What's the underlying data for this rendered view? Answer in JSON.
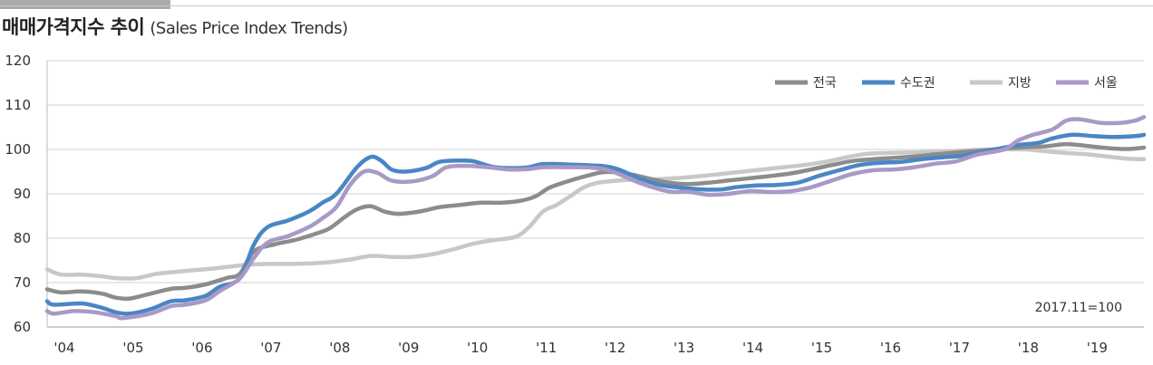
{
  "header": {
    "title_ko": "매매가격지수 추이",
    "title_en": "(Sales Price Index Trends)"
  },
  "chart_data": {
    "type": "line",
    "title": "매매가격지수 추이 (Sales Price Index Trends)",
    "note": "2017.11=100",
    "ylim": [
      60,
      120
    ],
    "yticks": [
      "60",
      "70",
      "80",
      "90",
      "100",
      "110",
      "120"
    ],
    "xlim": [
      2004.0,
      2019.93
    ],
    "xticks": [
      "'04",
      "'05",
      "'06",
      "'07",
      "'08",
      "'09",
      "'10",
      "'11",
      "'12",
      "'13",
      "'14",
      "'15",
      "'16",
      "'17",
      "'18",
      "'19"
    ],
    "grid": true,
    "legend_position": "top-right",
    "series": [
      {
        "name": "전국",
        "color": "#8c8c8c",
        "points": [
          [
            2004.0,
            68.5
          ],
          [
            2004.2,
            67.8
          ],
          [
            2004.5,
            68.0
          ],
          [
            2004.8,
            67.5
          ],
          [
            2005.0,
            66.6
          ],
          [
            2005.2,
            66.4
          ],
          [
            2005.5,
            67.5
          ],
          [
            2005.8,
            68.6
          ],
          [
            2006.0,
            68.8
          ],
          [
            2006.3,
            69.6
          ],
          [
            2006.6,
            71.0
          ],
          [
            2006.8,
            72.0
          ],
          [
            2007.0,
            77.0
          ],
          [
            2007.3,
            78.6
          ],
          [
            2007.6,
            79.6
          ],
          [
            2007.9,
            81.0
          ],
          [
            2008.1,
            82.2
          ],
          [
            2008.3,
            84.5
          ],
          [
            2008.5,
            86.5
          ],
          [
            2008.7,
            87.2
          ],
          [
            2008.9,
            86.0
          ],
          [
            2009.1,
            85.5
          ],
          [
            2009.4,
            86.0
          ],
          [
            2009.7,
            87.0
          ],
          [
            2010.0,
            87.5
          ],
          [
            2010.3,
            88.0
          ],
          [
            2010.6,
            88.0
          ],
          [
            2010.9,
            88.5
          ],
          [
            2011.1,
            89.5
          ],
          [
            2011.3,
            91.4
          ],
          [
            2011.6,
            93.0
          ],
          [
            2011.9,
            94.3
          ],
          [
            2012.1,
            94.9
          ],
          [
            2012.4,
            94.6
          ],
          [
            2012.7,
            93.6
          ],
          [
            2013.0,
            92.6
          ],
          [
            2013.3,
            92.2
          ],
          [
            2013.6,
            92.5
          ],
          [
            2013.9,
            93.0
          ],
          [
            2014.2,
            93.5
          ],
          [
            2014.5,
            94.0
          ],
          [
            2014.8,
            94.6
          ],
          [
            2015.1,
            95.5
          ],
          [
            2015.4,
            96.5
          ],
          [
            2015.7,
            97.4
          ],
          [
            2016.0,
            97.8
          ],
          [
            2016.3,
            98.1
          ],
          [
            2016.6,
            98.4
          ],
          [
            2016.9,
            98.9
          ],
          [
            2017.2,
            99.3
          ],
          [
            2017.6,
            99.8
          ],
          [
            2017.9,
            100.2
          ],
          [
            2018.2,
            100.5
          ],
          [
            2018.5,
            100.7
          ],
          [
            2018.8,
            101.2
          ],
          [
            2019.1,
            100.8
          ],
          [
            2019.4,
            100.3
          ],
          [
            2019.7,
            100.1
          ],
          [
            2019.93,
            100.4
          ]
        ]
      },
      {
        "name": "수도권",
        "color": "#4a86c5",
        "points": [
          [
            2004.0,
            65.8
          ],
          [
            2004.1,
            65.0
          ],
          [
            2004.5,
            65.3
          ],
          [
            2004.8,
            64.3
          ],
          [
            2005.0,
            63.3
          ],
          [
            2005.2,
            63.0
          ],
          [
            2005.5,
            64.0
          ],
          [
            2005.8,
            65.8
          ],
          [
            2006.0,
            66.0
          ],
          [
            2006.3,
            67.0
          ],
          [
            2006.5,
            69.0
          ],
          [
            2006.8,
            71.0
          ],
          [
            2007.0,
            78.5
          ],
          [
            2007.2,
            82.5
          ],
          [
            2007.5,
            84.0
          ],
          [
            2007.8,
            86.0
          ],
          [
            2008.0,
            88.0
          ],
          [
            2008.2,
            90.0
          ],
          [
            2008.5,
            96.0
          ],
          [
            2008.7,
            98.3
          ],
          [
            2008.85,
            97.5
          ],
          [
            2009.0,
            95.5
          ],
          [
            2009.2,
            95.0
          ],
          [
            2009.5,
            95.8
          ],
          [
            2009.7,
            97.2
          ],
          [
            2010.0,
            97.5
          ],
          [
            2010.2,
            97.3
          ],
          [
            2010.5,
            96.0
          ],
          [
            2010.8,
            95.8
          ],
          [
            2011.0,
            96.0
          ],
          [
            2011.2,
            96.7
          ],
          [
            2011.6,
            96.6
          ],
          [
            2011.9,
            96.4
          ],
          [
            2012.1,
            96.2
          ],
          [
            2012.3,
            95.5
          ],
          [
            2012.6,
            93.5
          ],
          [
            2012.9,
            92.0
          ],
          [
            2013.2,
            91.4
          ],
          [
            2013.5,
            91.0
          ],
          [
            2013.8,
            91.0
          ],
          [
            2014.0,
            91.5
          ],
          [
            2014.3,
            91.9
          ],
          [
            2014.6,
            92.0
          ],
          [
            2014.9,
            92.5
          ],
          [
            2015.2,
            94.0
          ],
          [
            2015.5,
            95.3
          ],
          [
            2015.8,
            96.5
          ],
          [
            2016.1,
            97.0
          ],
          [
            2016.4,
            97.2
          ],
          [
            2016.7,
            97.8
          ],
          [
            2017.0,
            98.2
          ],
          [
            2017.3,
            98.6
          ],
          [
            2017.6,
            99.5
          ],
          [
            2017.9,
            100.4
          ],
          [
            2018.1,
            101.0
          ],
          [
            2018.4,
            101.5
          ],
          [
            2018.6,
            102.5
          ],
          [
            2018.9,
            103.3
          ],
          [
            2019.2,
            103.0
          ],
          [
            2019.5,
            102.8
          ],
          [
            2019.8,
            103.0
          ],
          [
            2019.93,
            103.3
          ]
        ]
      },
      {
        "name": "지방",
        "color": "#c8c8c8",
        "points": [
          [
            2004.0,
            73.0
          ],
          [
            2004.2,
            71.8
          ],
          [
            2004.5,
            71.8
          ],
          [
            2004.8,
            71.4
          ],
          [
            2005.0,
            71.0
          ],
          [
            2005.3,
            71.0
          ],
          [
            2005.6,
            72.0
          ],
          [
            2006.0,
            72.6
          ],
          [
            2006.3,
            73.0
          ],
          [
            2006.6,
            73.5
          ],
          [
            2006.9,
            74.0
          ],
          [
            2007.2,
            74.2
          ],
          [
            2007.5,
            74.2
          ],
          [
            2007.8,
            74.3
          ],
          [
            2008.1,
            74.6
          ],
          [
            2008.4,
            75.2
          ],
          [
            2008.7,
            76.0
          ],
          [
            2009.0,
            75.8
          ],
          [
            2009.3,
            75.8
          ],
          [
            2009.6,
            76.4
          ],
          [
            2009.9,
            77.5
          ],
          [
            2010.2,
            78.8
          ],
          [
            2010.5,
            79.6
          ],
          [
            2010.8,
            80.3
          ],
          [
            2011.0,
            82.5
          ],
          [
            2011.2,
            86.0
          ],
          [
            2011.4,
            87.5
          ],
          [
            2011.6,
            89.5
          ],
          [
            2011.8,
            91.5
          ],
          [
            2012.0,
            92.5
          ],
          [
            2012.3,
            93.0
          ],
          [
            2012.6,
            93.2
          ],
          [
            2012.9,
            93.3
          ],
          [
            2013.2,
            93.6
          ],
          [
            2013.5,
            94.0
          ],
          [
            2013.8,
            94.5
          ],
          [
            2014.1,
            95.0
          ],
          [
            2014.4,
            95.5
          ],
          [
            2014.7,
            96.0
          ],
          [
            2015.0,
            96.5
          ],
          [
            2015.3,
            97.2
          ],
          [
            2015.6,
            98.2
          ],
          [
            2015.9,
            99.0
          ],
          [
            2016.2,
            99.2
          ],
          [
            2016.5,
            99.3
          ],
          [
            2016.8,
            99.4
          ],
          [
            2017.1,
            99.6
          ],
          [
            2017.5,
            99.9
          ],
          [
            2017.9,
            100.0
          ],
          [
            2018.2,
            100.0
          ],
          [
            2018.5,
            99.6
          ],
          [
            2018.8,
            99.2
          ],
          [
            2019.1,
            98.9
          ],
          [
            2019.4,
            98.4
          ],
          [
            2019.7,
            97.9
          ],
          [
            2019.93,
            97.8
          ]
        ]
      },
      {
        "name": "서울",
        "color": "#a899c6",
        "points": [
          [
            2004.0,
            63.6
          ],
          [
            2004.1,
            63.0
          ],
          [
            2004.4,
            63.6
          ],
          [
            2004.7,
            63.3
          ],
          [
            2005.0,
            62.4
          ],
          [
            2005.1,
            62.0
          ],
          [
            2005.5,
            63.0
          ],
          [
            2005.8,
            64.7
          ],
          [
            2006.0,
            65.0
          ],
          [
            2006.3,
            66.0
          ],
          [
            2006.5,
            68.0
          ],
          [
            2006.8,
            71.0
          ],
          [
            2007.0,
            75.5
          ],
          [
            2007.2,
            79.0
          ],
          [
            2007.5,
            80.5
          ],
          [
            2007.8,
            82.5
          ],
          [
            2008.0,
            84.5
          ],
          [
            2008.2,
            87.0
          ],
          [
            2008.4,
            92.0
          ],
          [
            2008.6,
            95.0
          ],
          [
            2008.8,
            94.7
          ],
          [
            2009.0,
            93.0
          ],
          [
            2009.3,
            92.8
          ],
          [
            2009.6,
            94.0
          ],
          [
            2009.8,
            96.0
          ],
          [
            2010.1,
            96.3
          ],
          [
            2010.4,
            96.0
          ],
          [
            2010.7,
            95.5
          ],
          [
            2011.0,
            95.6
          ],
          [
            2011.2,
            96.0
          ],
          [
            2011.6,
            96.0
          ],
          [
            2011.9,
            95.9
          ],
          [
            2012.1,
            95.5
          ],
          [
            2012.3,
            94.5
          ],
          [
            2012.6,
            92.5
          ],
          [
            2012.9,
            91.0
          ],
          [
            2013.1,
            90.4
          ],
          [
            2013.3,
            90.5
          ],
          [
            2013.6,
            89.8
          ],
          [
            2013.9,
            90.0
          ],
          [
            2014.2,
            90.6
          ],
          [
            2014.5,
            90.4
          ],
          [
            2014.8,
            90.6
          ],
          [
            2015.1,
            91.5
          ],
          [
            2015.4,
            93.0
          ],
          [
            2015.7,
            94.5
          ],
          [
            2016.0,
            95.3
          ],
          [
            2016.3,
            95.5
          ],
          [
            2016.6,
            96.0
          ],
          [
            2016.9,
            96.8
          ],
          [
            2017.2,
            97.3
          ],
          [
            2017.5,
            98.8
          ],
          [
            2017.9,
            100.0
          ],
          [
            2018.1,
            102.0
          ],
          [
            2018.3,
            103.2
          ],
          [
            2018.6,
            104.5
          ],
          [
            2018.8,
            106.5
          ],
          [
            2019.0,
            106.8
          ],
          [
            2019.3,
            106.0
          ],
          [
            2019.6,
            106.0
          ],
          [
            2019.8,
            106.5
          ],
          [
            2019.93,
            107.3
          ]
        ]
      }
    ]
  }
}
